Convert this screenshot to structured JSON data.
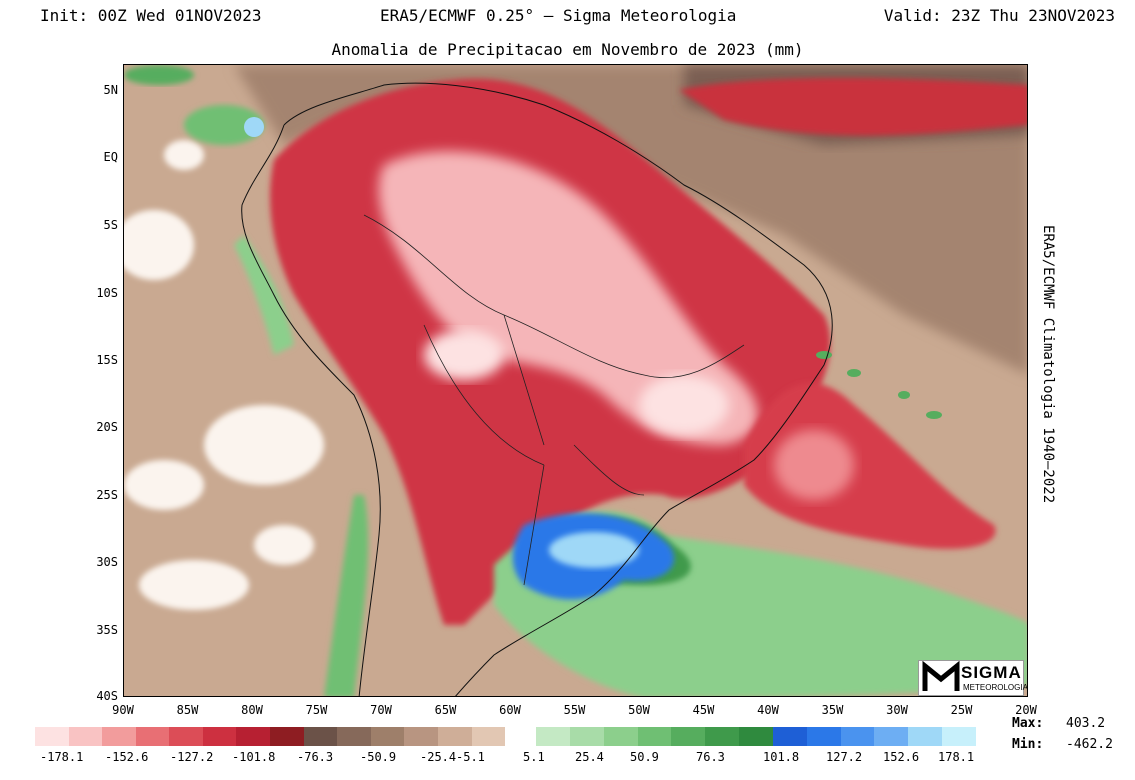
{
  "header": {
    "init": "Init: 00Z Wed 01NOV2023",
    "center": "ERA5/ECMWF 0.25° – Sigma Meteorologia",
    "valid": "Valid: 23Z Thu 23NOV2023"
  },
  "title": "Anomalia de Precipitacao em Novembro de 2023 (mm)",
  "side_label": "ERA5/ECMWF Climatologia 1940–2022",
  "axes": {
    "lat_labels": [
      "5N",
      "EQ",
      "5S",
      "10S",
      "15S",
      "20S",
      "25S",
      "30S",
      "35S",
      "40S"
    ],
    "lon_labels": [
      "90W",
      "85W",
      "80W",
      "75W",
      "70W",
      "65W",
      "60W",
      "55W",
      "50W",
      "45W",
      "40W",
      "35W",
      "30W",
      "25W",
      "20W"
    ]
  },
  "colorbar": {
    "negative_labels": [
      "-178.1",
      "-152.6",
      "-127.2",
      "-101.8",
      "-76.3",
      "-50.9",
      "-25.4",
      "-5.1"
    ],
    "positive_labels": [
      "5.1",
      "25.4",
      "50.9",
      "76.3",
      "101.8",
      "127.2",
      "152.6",
      "178.1"
    ],
    "negative_colors": [
      "#fde2e2",
      "#f9c3c3",
      "#f29c9c",
      "#e86f74",
      "#dc4d57",
      "#cd3040",
      "#b72032",
      "#8e1d22",
      "#6b5248",
      "#86695a",
      "#9e7f6a",
      "#b89581",
      "#cfae98",
      "#e2c7b3"
    ],
    "positive_colors": [
      "#c4e9c4",
      "#a8dca8",
      "#8ccf8c",
      "#6fbf73",
      "#56ad5e",
      "#3f9a4b",
      "#2f8a3e",
      "#1e5fd6",
      "#2b78e8",
      "#4a93ef",
      "#6daef3",
      "#9fd8f7",
      "#c7f0fb"
    ]
  },
  "stats": {
    "max_label": "Max:",
    "max_value": "403.2",
    "min_label": "Min:",
    "min_value": "-462.2"
  },
  "logo": {
    "text_big": "SIGMA",
    "text_small": "METEOROLOGIA"
  }
}
